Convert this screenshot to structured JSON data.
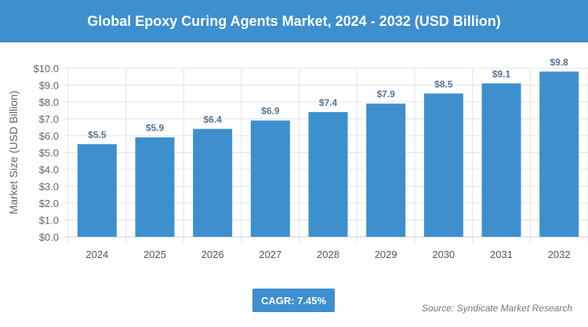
{
  "title": "Global Epoxy Curing Agents Market, 2024 - 2032 (USD Billion)",
  "cagr": "CAGR: 7.45%",
  "source": "Source: Syndicate Market Research",
  "colors": {
    "bar": "#3d8fce",
    "header": "#3d8fce",
    "label": "#5a7393"
  },
  "chart_data": {
    "type": "bar",
    "title": "Global Epoxy Curing Agents Market, 2024 - 2032 (USD Billion)",
    "xlabel": "",
    "ylabel": "Market Size (USD Billion)",
    "categories": [
      "2024",
      "2025",
      "2026",
      "2027",
      "2028",
      "2029",
      "2030",
      "2031",
      "2032"
    ],
    "values": [
      5.5,
      5.9,
      6.4,
      6.9,
      7.4,
      7.9,
      8.5,
      9.1,
      9.8
    ],
    "data_labels": [
      "$5.5",
      "$5.9",
      "$6.4",
      "$6.9",
      "$7.4",
      "$7.9",
      "$8.5",
      "$9.1",
      "$9.8"
    ],
    "ylim": [
      0,
      10
    ],
    "yticks": [
      "$0.0",
      "$1.0",
      "$2.0",
      "$3.0",
      "$4.0",
      "$5.0",
      "$6.0",
      "$7.0",
      "$8.0",
      "$9.0",
      "$10.0"
    ],
    "grid": true
  }
}
